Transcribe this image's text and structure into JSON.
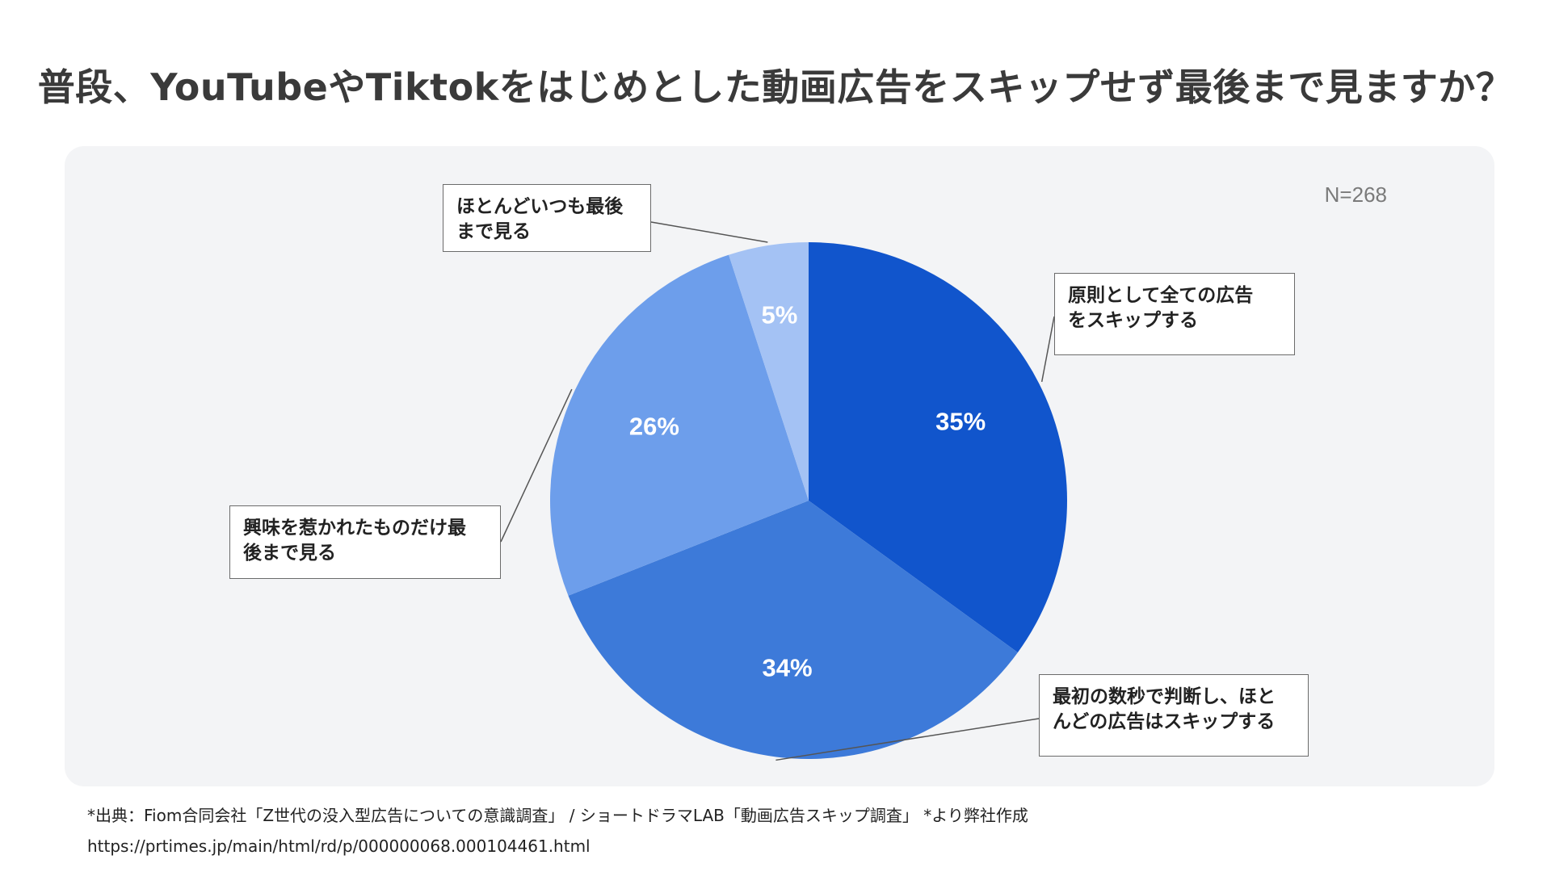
{
  "title": "普段、YouTubeやTiktokをはじめとした動画広告をスキップせず最後まで見ますか？",
  "sample_size": "N=268",
  "chart_data": {
    "type": "pie",
    "title": "普段、YouTubeやTiktokをはじめとした動画広告をスキップせず最後まで見ますか？",
    "slices": [
      {
        "label": "原則として全ての広告\nをスキップする",
        "value": 35,
        "display": "35%",
        "color": "#1155cc"
      },
      {
        "label": "最初の数秒で判断し、ほと\nんどの広告はスキップする",
        "value": 34,
        "display": "34%",
        "color": "#3d7ad9"
      },
      {
        "label": "興味を惹かれたものだけ最\n後まで見る",
        "value": 26,
        "display": "26%",
        "color": "#6d9eeb"
      },
      {
        "label": "ほとんどいつも最後\nまで見る",
        "value": 5,
        "display": "5%",
        "color": "#a4c2f4"
      }
    ]
  },
  "footer": {
    "source": "*出典：Fiom合同会社「Z世代の没入型広告についての意識調査」 / ショートドラマLAB「動画広告スキップ調査」 *より弊社作成",
    "url": "https://prtimes.jp/main/html/rd/p/000000068.000104461.html"
  }
}
